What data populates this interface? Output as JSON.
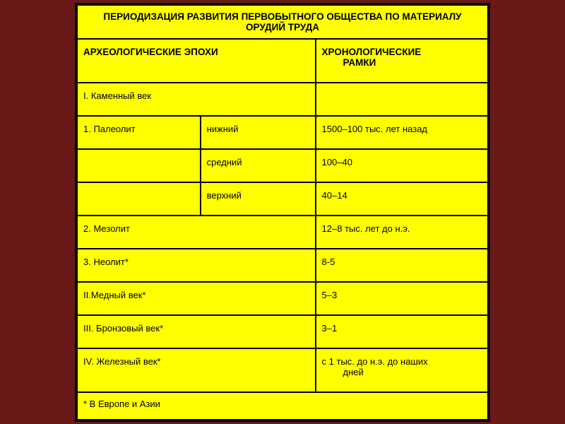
{
  "table": {
    "title": "ПЕРИОДИЗАЦИЯ РАЗВИТИЯ ПЕРВОБЫТНОГО ОБЩЕСТВА ПО МАТЕРИАЛУ ОРУДИЙ ТРУДА",
    "header": {
      "col1": "АРХЕОЛОГИЧЕСКИЕ ЭПОХИ",
      "col2_line1": "ХРОНОЛОГИЧЕСКИЕ",
      "col2_line2": "РАМКИ"
    },
    "rows": [
      {
        "c1": "I. Каменный век",
        "c2": "",
        "c3": ""
      },
      {
        "c1": "1. Палеолит",
        "c2": "нижний",
        "c3": "1500–100 тыс. лет назад"
      },
      {
        "c1": "",
        "c2": "средний",
        "c3": "100–40"
      },
      {
        "c1": "",
        "c2": "верхний",
        "c3": "40–14"
      },
      {
        "c1": "2. Мезолит",
        "c2": "",
        "c3": "12–8 тыс. лет до н.э."
      },
      {
        "c1": "3. Неолит*",
        "c2": "",
        "c3": "8-5"
      },
      {
        "c1": "II.Медный век*",
        "c2": "",
        "c3": "5–3"
      },
      {
        "c1": "III. Бронзовый век*",
        "c2": "",
        "c3": "3–1"
      },
      {
        "c1_line1": "IV. Железный век*",
        "c2": "",
        "c3_line1": "с 1 тыс. до н.э. до наших",
        "c3_line2": "дней"
      }
    ],
    "footer": "* В Европе и Азии",
    "background_color": "#ffff00",
    "border_color": "#000000",
    "page_background": "#6b1818",
    "font_family": "Arial",
    "title_fontsize": 13.5,
    "body_fontsize": 13
  }
}
